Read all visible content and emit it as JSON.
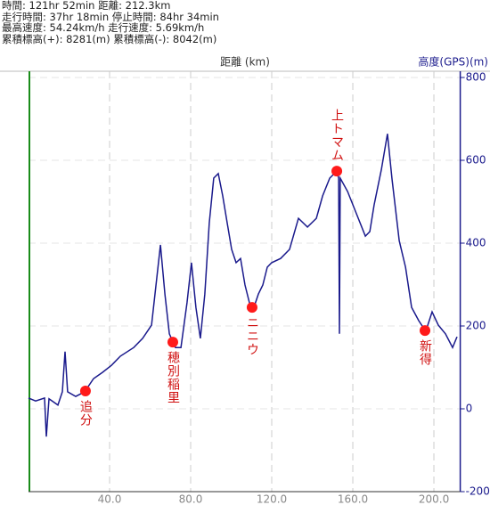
{
  "info": [
    "時間: 121hr 52min  距離: 212.3km",
    "走行時間: 37hr 18min  停止時間: 84hr 34min",
    "最高速度: 54.24km/h  走行速度: 5.69km/h",
    "累積標高(+): 8281(m)  累積標高(-): 8042(m)"
  ],
  "chart_data": {
    "type": "line",
    "xlabel": "距離 (km)",
    "ylabel": "高度(GPS)(m)",
    "color": "#1a1a8c",
    "grid": true,
    "xlim": [
      0,
      213
    ],
    "ylim": [
      -200,
      800
    ],
    "xticks": [
      {
        "value": 40,
        "label": "40.0"
      },
      {
        "value": 80,
        "label": "80.0"
      },
      {
        "value": 120,
        "label": "120.0"
      },
      {
        "value": 160,
        "label": "160.0"
      },
      {
        "value": 200,
        "label": "200.0"
      }
    ],
    "yticks": [
      800,
      600,
      400,
      200,
      0,
      -200
    ],
    "x": [
      0,
      3.5,
      7.9,
      8.8,
      10.1,
      14.5,
      16.7,
      18,
      19.3,
      23.3,
      27.7,
      32.1,
      36.5,
      40.9,
      45.3,
      51.9,
      56.3,
      60.7,
      62.9,
      65.1,
      67.3,
      69.5,
      72.5,
      75.2,
      78.2,
      80.4,
      82.6,
      84.8,
      87,
      89.2,
      91.4,
      93.6,
      95.8,
      98,
      100.2,
      102.4,
      104.6,
      106.8,
      109,
      111.2,
      113.4,
      115.6,
      117.8,
      120,
      124.4,
      128.8,
      133.2,
      137.6,
      142,
      145.1,
      148.6,
      152.1,
      153,
      153.4,
      153.8,
      157.4,
      161.8,
      166.2,
      168.4,
      170.5,
      174.1,
      177.1,
      179.3,
      182.9,
      186,
      189,
      192.5,
      196,
      199.1,
      202.2,
      205.7,
      209.2,
      211.4
    ],
    "values": [
      26,
      19,
      26,
      -67,
      24,
      9,
      41,
      138,
      41,
      30,
      41,
      73,
      88,
      105,
      127,
      148,
      170,
      202,
      299,
      396,
      277,
      181,
      148,
      148,
      256,
      353,
      245,
      170,
      277,
      449,
      557,
      568,
      514,
      449,
      385,
      353,
      363,
      299,
      256,
      245,
      277,
      299,
      342,
      353,
      363,
      385,
      460,
      439,
      460,
      514,
      557,
      574,
      557,
      181,
      557,
      525,
      471,
      417,
      428,
      492,
      578,
      664,
      557,
      406,
      342,
      245,
      213,
      187,
      234,
      202,
      181,
      148,
      174
    ],
    "points": [
      {
        "x": 28.1,
        "y": 43,
        "label": "追分"
      },
      {
        "x": 71.2,
        "y": 161,
        "label": "穂別稲里"
      },
      {
        "x": 110.3,
        "y": 245,
        "label": "ニニウ"
      },
      {
        "x": 152.1,
        "y": 574,
        "label": "上トマム"
      },
      {
        "x": 195.6,
        "y": 189,
        "label": "新得"
      }
    ]
  }
}
